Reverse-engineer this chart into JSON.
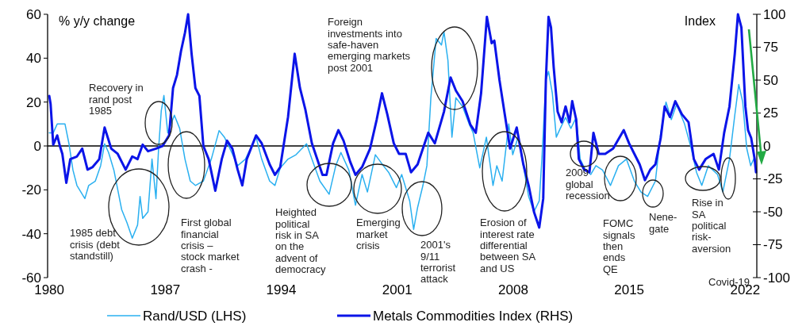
{
  "chart_data": {
    "type": "line",
    "ylabel": "% y/y change",
    "y2label": "Index",
    "xlim": [
      1979.9,
      2022.7
    ],
    "xticks": [
      1980,
      1987,
      1994,
      2001,
      2008,
      2015,
      2022
    ],
    "ylim": [
      -60,
      60
    ],
    "yticks": [
      -60,
      -40,
      -20,
      0,
      20,
      40,
      60
    ],
    "y2lim": [
      -100,
      100
    ],
    "y2ticks": [
      -100,
      -75,
      -50,
      -25,
      0,
      25,
      50,
      75,
      100
    ],
    "legend": "bottom",
    "grid": false,
    "marker": "none",
    "line_style": "solid",
    "ref_lines": [
      {
        "axis": "y",
        "value": 0,
        "color": "#000000"
      }
    ],
    "series": [
      {
        "name": "Rand/USD (LHS)",
        "color": "#2ab0f0",
        "x": [
          1980.0,
          1980.24,
          1980.48,
          1980.95,
          1981.19,
          1981.43,
          1981.67,
          1981.99,
          1982.15,
          1982.38,
          1982.78,
          1983.1,
          1983.34,
          1983.58,
          1983.9,
          1984.37,
          1984.69,
          1985.01,
          1985.33,
          1985.48,
          1985.64,
          1985.96,
          1986.2,
          1986.44,
          1986.6,
          1986.76,
          1986.92,
          1987.15,
          1987.55,
          1987.87,
          1988.19,
          1988.51,
          1988.82,
          1989.3,
          1989.78,
          1990.25,
          1990.57,
          1990.89,
          1991.37,
          1991.84,
          1992.48,
          1992.82,
          1993.3,
          1993.62,
          1993.94,
          1994.41,
          1994.89,
          1995.53,
          1995.85,
          1996.33,
          1996.89,
          1997.29,
          1997.6,
          1998.08,
          1998.48,
          1998.88,
          1999.2,
          1999.68,
          2000.16,
          2000.48,
          2000.95,
          2001.27,
          2001.75,
          2001.99,
          2002.23,
          2002.55,
          2002.79,
          2003.03,
          2003.35,
          2003.67,
          2003.82,
          2004.06,
          2004.3,
          2004.54,
          2004.94,
          2005.34,
          2005.58,
          2005.98,
          2006.38,
          2006.78,
          2007.01,
          2007.33,
          2007.73,
          2007.97,
          2008.29,
          2008.61,
          2008.93,
          2009.25,
          2009.57,
          2009.73,
          2009.97,
          2010.13,
          2010.36,
          2010.6,
          2010.84,
          2011.16,
          2011.48,
          2011.8,
          2012.04,
          2012.36,
          2012.68,
          2012.99,
          2013.39,
          2013.87,
          2014.35,
          2014.83,
          2015.31,
          2015.71,
          2016.11,
          2016.58,
          2016.9,
          2017.22,
          2017.54,
          2017.86,
          2018.34,
          2018.74,
          2019.06,
          2019.38,
          2019.77,
          2020.33,
          2020.65,
          2021.05,
          2021.37,
          2021.61,
          2021.85,
          2022.09,
          2022.33,
          2022.57,
          2022.65
        ],
        "values": [
          6,
          6,
          10,
          10,
          1,
          -11,
          -18,
          -22,
          -24,
          -18,
          -16,
          -9,
          1,
          -3,
          -11,
          -29,
          -35,
          -42,
          -36,
          -23,
          -33,
          -30,
          -6,
          -24,
          -1,
          16,
          23,
          6,
          14,
          8,
          -6,
          -16,
          -18,
          -16,
          -6,
          7,
          4,
          -1,
          -9,
          -6,
          4,
          -6,
          -16,
          -18,
          -10,
          -6,
          -4,
          1,
          -6,
          -16,
          -22,
          -9,
          -3,
          -11,
          -27,
          -13,
          -21,
          -4,
          -9,
          -12,
          -19,
          -13,
          -25,
          -38,
          -28,
          -18,
          -9,
          22,
          49,
          46,
          52,
          39,
          4,
          22,
          18,
          10,
          6,
          -10,
          4,
          -18,
          -9,
          -16,
          10,
          -4,
          4,
          -9,
          -23,
          -30,
          -25,
          -6,
          30,
          34,
          24,
          4,
          8,
          13,
          8,
          13,
          -6,
          -11,
          -13,
          -9,
          -11,
          -18,
          -9,
          -6,
          -16,
          -21,
          -23,
          -16,
          6,
          20,
          12,
          19,
          10,
          -1,
          -12,
          -18,
          -9,
          -13,
          -21,
          -6,
          14,
          28,
          20,
          -1,
          -9,
          -5,
          -11
        ]
      },
      {
        "name": "Metals Commodities Index (RHS)",
        "color": "#0b14e8",
        "axis": "y2",
        "x": [
          1980.0,
          1980.08,
          1980.24,
          1980.48,
          1980.64,
          1980.79,
          1981.03,
          1981.27,
          1981.67,
          1981.99,
          1982.31,
          1982.62,
          1983.02,
          1983.34,
          1983.74,
          1984.13,
          1984.61,
          1985.01,
          1985.33,
          1985.64,
          1985.96,
          1986.44,
          1986.84,
          1987.23,
          1987.47,
          1987.71,
          1987.95,
          1988.19,
          1988.38,
          1988.59,
          1988.82,
          1989.06,
          1989.3,
          1989.62,
          1990.02,
          1990.41,
          1990.73,
          1991.05,
          1991.37,
          1991.65,
          1991.92,
          1992.48,
          1992.82,
          1993.3,
          1993.62,
          1993.94,
          1994.41,
          1994.81,
          1995.13,
          1995.45,
          1995.85,
          1996.17,
          1996.49,
          1996.73,
          1997.13,
          1997.45,
          1997.76,
          1998.16,
          1998.48,
          1998.88,
          1999.36,
          1999.76,
          2000.08,
          2000.4,
          2000.79,
          2001.11,
          2001.51,
          2001.83,
          2002.23,
          2002.55,
          2002.87,
          2003.27,
          2003.82,
          2004.22,
          2004.54,
          2004.94,
          2005.42,
          2005.74,
          2006.06,
          2006.41,
          2006.7,
          2006.86,
          2007.17,
          2007.49,
          2007.81,
          2008.21,
          2008.61,
          2008.93,
          2009.25,
          2009.57,
          2009.81,
          2009.97,
          2010.13,
          2010.28,
          2010.44,
          2010.68,
          2010.92,
          2011.16,
          2011.4,
          2011.56,
          2011.8,
          2011.96,
          2012.28,
          2012.6,
          2012.84,
          2013.16,
          2013.55,
          2014.03,
          2014.67,
          2014.99,
          2015.31,
          2015.63,
          2015.95,
          2016.27,
          2016.58,
          2016.9,
          2017.14,
          2017.46,
          2017.78,
          2018.18,
          2018.58,
          2018.9,
          2019.22,
          2019.61,
          2020.09,
          2020.41,
          2020.73,
          2021.05,
          2021.37,
          2021.56,
          2021.77,
          2022.01,
          2022.17,
          2022.36,
          2022.57,
          2022.65
        ],
        "values": [
          38,
          32,
          1,
          8,
          0,
          -6,
          -28,
          -10,
          -8,
          -2,
          -18,
          -16,
          -10,
          14,
          -2,
          -6,
          -18,
          -8,
          -10,
          1,
          -4,
          -2,
          0,
          8,
          44,
          54,
          72,
          86,
          100,
          70,
          44,
          38,
          0,
          -10,
          -34,
          -10,
          4,
          -2,
          -18,
          -30,
          -10,
          8,
          2,
          -14,
          -22,
          -16,
          22,
          70,
          44,
          28,
          2,
          -10,
          -22,
          -22,
          2,
          12,
          4,
          -12,
          -22,
          -16,
          -2,
          20,
          40,
          24,
          2,
          -6,
          -6,
          -20,
          -14,
          -2,
          10,
          2,
          26,
          52,
          42,
          34,
          16,
          10,
          40,
          98,
          78,
          80,
          50,
          24,
          -2,
          14,
          -14,
          -30,
          -50,
          -62,
          -40,
          50,
          98,
          90,
          60,
          26,
          18,
          30,
          18,
          34,
          20,
          -10,
          -18,
          -20,
          10,
          -6,
          -6,
          -2,
          12,
          2,
          -6,
          -14,
          -26,
          -18,
          -14,
          6,
          30,
          22,
          34,
          24,
          18,
          -10,
          -18,
          -10,
          -6,
          -18,
          10,
          30,
          70,
          100,
          90,
          30,
          12,
          6,
          -10,
          -20
        ]
      }
    ],
    "annotations": [
      "Recovery in rand post 1985",
      "1985 debt crisis (debt standstill)",
      "First global financial crisis – stock market crash -",
      "Heighted political risk in SA on the advent of democracy",
      "Emerging market crisis",
      "2001's 9/11 terrorist attack",
      "Foreign investments into safe-haven emerging markets post 2001",
      "Erosion of interest rate differential between SA and US",
      "2009 global recession",
      "FOMC signals then ends QE",
      "Nene-gate",
      "Rise in SA political risk-aversion",
      "Covid-19"
    ]
  }
}
